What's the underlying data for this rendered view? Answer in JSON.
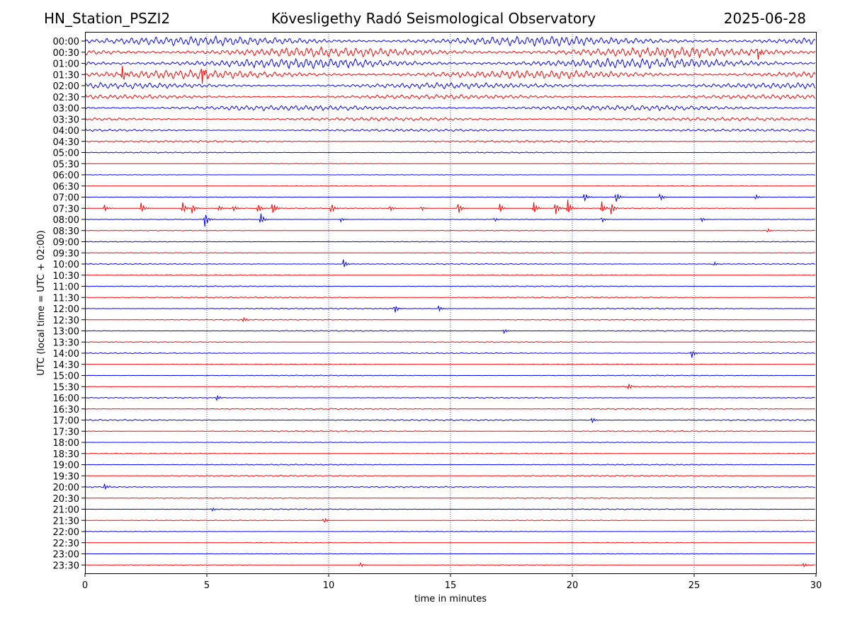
{
  "header": {
    "station": "HN_Station_PSZI2",
    "title": "Kövesligethy Radó Seismological Observatory",
    "date": "2025-06-28"
  },
  "chart_data": {
    "type": "line",
    "subtype": "helicorder",
    "xlabel": "time in minutes",
    "ylabel": "UTC (local time = UTC + 02:00)",
    "xlim": [
      0,
      30
    ],
    "x_ticks": [
      "0",
      "5",
      "10",
      "15",
      "20",
      "25",
      "30"
    ],
    "vertical_grid": true,
    "trace_colors": [
      "#0000ff",
      "#ff0000"
    ],
    "rows": [
      {
        "label": "00:00",
        "noise": 0.95
      },
      {
        "label": "00:30",
        "noise": 1.0
      },
      {
        "label": "01:00",
        "noise": 1.0
      },
      {
        "label": "01:30",
        "noise": 0.85
      },
      {
        "label": "02:00",
        "noise": 0.6
      },
      {
        "label": "02:30",
        "noise": 0.45
      },
      {
        "label": "03:00",
        "noise": 0.55
      },
      {
        "label": "03:30",
        "noise": 0.35
      },
      {
        "label": "04:00",
        "noise": 0.25
      },
      {
        "label": "04:30",
        "noise": 0.18
      },
      {
        "label": "05:00",
        "noise": 0.1
      },
      {
        "label": "05:30",
        "noise": 0.06
      },
      {
        "label": "06:00",
        "noise": 0.05
      },
      {
        "label": "06:30",
        "noise": 0.05
      },
      {
        "label": "07:00",
        "noise": 0.06
      },
      {
        "label": "07:30",
        "noise": 0.06
      },
      {
        "label": "08:00",
        "noise": 0.06
      },
      {
        "label": "08:30",
        "noise": 0.06
      },
      {
        "label": "09:00",
        "noise": 0.08
      },
      {
        "label": "09:30",
        "noise": 0.07
      },
      {
        "label": "10:00",
        "noise": 0.1
      },
      {
        "label": "10:30",
        "noise": 0.08
      },
      {
        "label": "11:00",
        "noise": 0.1
      },
      {
        "label": "11:30",
        "noise": 0.12
      },
      {
        "label": "12:00",
        "noise": 0.12
      },
      {
        "label": "12:30",
        "noise": 0.08
      },
      {
        "label": "13:00",
        "noise": 0.1
      },
      {
        "label": "13:30",
        "noise": 0.08
      },
      {
        "label": "14:00",
        "noise": 0.1
      },
      {
        "label": "14:30",
        "noise": 0.07
      },
      {
        "label": "15:00",
        "noise": 0.08
      },
      {
        "label": "15:30",
        "noise": 0.1
      },
      {
        "label": "16:00",
        "noise": 0.1
      },
      {
        "label": "16:30",
        "noise": 0.12
      },
      {
        "label": "17:00",
        "noise": 0.14
      },
      {
        "label": "17:30",
        "noise": 0.12
      },
      {
        "label": "18:00",
        "noise": 0.07
      },
      {
        "label": "18:30",
        "noise": 0.07
      },
      {
        "label": "19:00",
        "noise": 0.1
      },
      {
        "label": "19:30",
        "noise": 0.12
      },
      {
        "label": "20:00",
        "noise": 0.12
      },
      {
        "label": "20:30",
        "noise": 0.08
      },
      {
        "label": "21:00",
        "noise": 0.1
      },
      {
        "label": "21:30",
        "noise": 0.06
      },
      {
        "label": "22:00",
        "noise": 0.07
      },
      {
        "label": "22:30",
        "noise": 0.05
      },
      {
        "label": "23:00",
        "noise": 0.05
      },
      {
        "label": "23:30",
        "noise": 0.05
      }
    ],
    "events": [
      {
        "row": "01:30",
        "t": 4.8,
        "amp": 1.4
      },
      {
        "row": "01:30",
        "t": 1.5,
        "amp": 1.2
      },
      {
        "row": "00:30",
        "t": 27.6,
        "amp": 1.0
      },
      {
        "row": "07:00",
        "t": 20.5,
        "amp": 0.6
      },
      {
        "row": "07:00",
        "t": 21.8,
        "amp": 0.7
      },
      {
        "row": "07:00",
        "t": 23.6,
        "amp": 0.5
      },
      {
        "row": "07:00",
        "t": 27.5,
        "amp": 0.4
      },
      {
        "row": "07:30",
        "t": 0.8,
        "amp": 0.4
      },
      {
        "row": "07:30",
        "t": 2.3,
        "amp": 0.8
      },
      {
        "row": "07:30",
        "t": 4.0,
        "amp": 0.7
      },
      {
        "row": "07:30",
        "t": 4.4,
        "amp": 0.6
      },
      {
        "row": "07:30",
        "t": 5.5,
        "amp": 0.4
      },
      {
        "row": "07:30",
        "t": 6.1,
        "amp": 0.4
      },
      {
        "row": "07:30",
        "t": 7.1,
        "amp": 0.7
      },
      {
        "row": "07:30",
        "t": 7.7,
        "amp": 0.9
      },
      {
        "row": "07:30",
        "t": 10.1,
        "amp": 0.8
      },
      {
        "row": "07:30",
        "t": 12.5,
        "amp": 0.4
      },
      {
        "row": "07:30",
        "t": 13.8,
        "amp": 0.3
      },
      {
        "row": "07:30",
        "t": 15.3,
        "amp": 0.8
      },
      {
        "row": "07:30",
        "t": 17.0,
        "amp": 0.7
      },
      {
        "row": "07:30",
        "t": 18.4,
        "amp": 1.0
      },
      {
        "row": "07:30",
        "t": 19.3,
        "amp": 1.0
      },
      {
        "row": "07:30",
        "t": 19.8,
        "amp": 1.1
      },
      {
        "row": "07:30",
        "t": 21.2,
        "amp": 0.8
      },
      {
        "row": "07:30",
        "t": 21.6,
        "amp": 0.8
      },
      {
        "row": "08:00",
        "t": 4.9,
        "amp": 1.2
      },
      {
        "row": "08:00",
        "t": 7.2,
        "amp": 0.8
      },
      {
        "row": "08:00",
        "t": 10.5,
        "amp": 0.3
      },
      {
        "row": "08:00",
        "t": 16.8,
        "amp": 0.3
      },
      {
        "row": "08:00",
        "t": 21.2,
        "amp": 0.4
      },
      {
        "row": "08:00",
        "t": 25.3,
        "amp": 0.3
      },
      {
        "row": "08:30",
        "t": 28.0,
        "amp": 0.3
      },
      {
        "row": "10:00",
        "t": 10.6,
        "amp": 0.6
      },
      {
        "row": "10:00",
        "t": 25.8,
        "amp": 0.3
      },
      {
        "row": "12:00",
        "t": 12.7,
        "amp": 0.6
      },
      {
        "row": "12:00",
        "t": 14.5,
        "amp": 0.4
      },
      {
        "row": "12:30",
        "t": 6.5,
        "amp": 0.3
      },
      {
        "row": "13:00",
        "t": 17.2,
        "amp": 0.3
      },
      {
        "row": "14:00",
        "t": 24.9,
        "amp": 0.5
      },
      {
        "row": "15:30",
        "t": 22.3,
        "amp": 0.4
      },
      {
        "row": "16:00",
        "t": 5.4,
        "amp": 0.4
      },
      {
        "row": "17:00",
        "t": 20.8,
        "amp": 0.4
      },
      {
        "row": "20:00",
        "t": 0.8,
        "amp": 0.4
      },
      {
        "row": "21:00",
        "t": 5.2,
        "amp": 0.3
      },
      {
        "row": "21:30",
        "t": 9.8,
        "amp": 0.4
      },
      {
        "row": "23:30",
        "t": 11.3,
        "amp": 0.3
      },
      {
        "row": "23:30",
        "t": 29.5,
        "amp": 0.3
      }
    ]
  }
}
